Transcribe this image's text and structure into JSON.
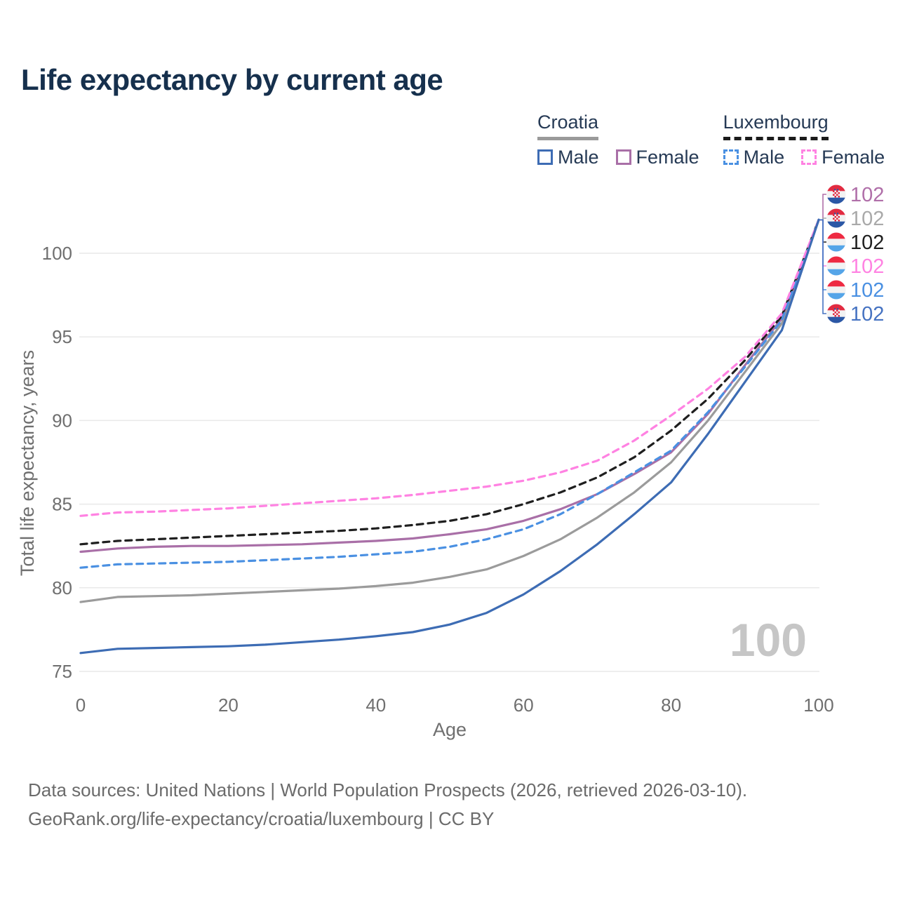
{
  "header": {
    "title": "Life expectancy by current age"
  },
  "legend": {
    "groups": [
      {
        "id": "croatia",
        "name": "Croatia",
        "line_style": "solid",
        "underline_color": "#9a9a9a",
        "items": [
          {
            "label": "Male",
            "color": "#3d6cb4",
            "dashed": false
          },
          {
            "label": "Female",
            "color": "#a96fa7",
            "dashed": false
          }
        ]
      },
      {
        "id": "luxembourg",
        "name": "Luxembourg",
        "line_style": "dashed",
        "underline_color": "#1b1b1b",
        "items": [
          {
            "label": "Male",
            "color": "#4a90e2",
            "dashed": true
          },
          {
            "label": "Female",
            "color": "#ff82e2",
            "dashed": true
          }
        ]
      }
    ]
  },
  "chart_data": {
    "type": "line",
    "title": "Life expectancy by current age",
    "xlabel": "Age",
    "ylabel": "Total life expectancy, years",
    "xlim": [
      0,
      100
    ],
    "ylim": [
      75,
      102.5
    ],
    "xticks": [
      0,
      20,
      40,
      60,
      80,
      100
    ],
    "yticks": [
      75,
      80,
      85,
      90,
      95,
      100
    ],
    "grid": "horizontal",
    "legend_position": "top-right",
    "x": [
      0,
      5,
      10,
      15,
      20,
      25,
      30,
      35,
      40,
      45,
      50,
      55,
      60,
      65,
      70,
      75,
      80,
      85,
      90,
      95,
      100
    ],
    "series": [
      {
        "id": "croatia-all",
        "name": "Croatia",
        "color": "#9b9b9b",
        "dashed": false,
        "values": [
          79.15,
          79.45,
          79.5,
          79.55,
          79.65,
          79.75,
          79.85,
          79.95,
          80.1,
          80.3,
          80.65,
          81.1,
          81.9,
          82.9,
          84.2,
          85.7,
          87.5,
          90.0,
          92.9,
          95.8,
          102
        ]
      },
      {
        "id": "croatia-female",
        "name": "Croatia Female",
        "color": "#a96fa7",
        "dashed": false,
        "values": [
          82.15,
          82.35,
          82.45,
          82.5,
          82.5,
          82.55,
          82.6,
          82.7,
          82.8,
          82.95,
          83.2,
          83.5,
          84.0,
          84.7,
          85.6,
          86.8,
          88.1,
          90.4,
          93.3,
          96.1,
          102
        ]
      },
      {
        "id": "luxembourg-all",
        "name": "Luxembourg",
        "color": "#1f1f1f",
        "dashed": true,
        "values": [
          82.6,
          82.8,
          82.9,
          83.0,
          83.1,
          83.2,
          83.3,
          83.4,
          83.55,
          83.75,
          84.0,
          84.4,
          85.0,
          85.7,
          86.6,
          87.8,
          89.4,
          91.3,
          93.6,
          96.25,
          102
        ]
      },
      {
        "id": "luxembourg-male",
        "name": "Luxembourg Male",
        "color": "#4a90e2",
        "dashed": true,
        "values": [
          81.2,
          81.4,
          81.45,
          81.5,
          81.55,
          81.65,
          81.75,
          81.85,
          82.0,
          82.15,
          82.45,
          82.9,
          83.5,
          84.4,
          85.6,
          86.9,
          88.2,
          90.5,
          93.2,
          96.0,
          102
        ]
      },
      {
        "id": "luxembourg-female",
        "name": "Luxembourg Female",
        "color": "#ff82e2",
        "dashed": true,
        "values": [
          84.3,
          84.5,
          84.55,
          84.65,
          84.75,
          84.9,
          85.05,
          85.2,
          85.35,
          85.55,
          85.8,
          86.05,
          86.4,
          86.9,
          87.6,
          88.8,
          90.3,
          91.9,
          93.8,
          96.4,
          102
        ]
      },
      {
        "id": "croatia-male",
        "name": "Croatia Male",
        "color": "#3d6cb4",
        "dashed": false,
        "values": [
          76.1,
          76.35,
          76.4,
          76.45,
          76.5,
          76.6,
          76.75,
          76.9,
          77.1,
          77.35,
          77.8,
          78.5,
          79.6,
          81.0,
          82.6,
          84.4,
          86.3,
          89.2,
          92.3,
          95.4,
          102
        ]
      }
    ],
    "end_labels": [
      {
        "flag": "croatia",
        "series": "croatia-female",
        "value": "102",
        "color": "#b06fa9"
      },
      {
        "flag": "croatia",
        "series": "croatia-all",
        "value": "102",
        "color": "#a9a9a9"
      },
      {
        "flag": "luxembourg",
        "series": "luxembourg-all",
        "value": "102",
        "color": "#1f1f1f"
      },
      {
        "flag": "luxembourg",
        "series": "luxembourg-female",
        "value": "102",
        "color": "#ff82e2"
      },
      {
        "flag": "luxembourg",
        "series": "luxembourg-male",
        "value": "102",
        "color": "#4a90e2"
      },
      {
        "flag": "croatia",
        "series": "croatia-male",
        "value": "102",
        "color": "#4673c2"
      }
    ],
    "watermark": "100"
  },
  "footer": {
    "line1": "Data sources: United Nations | World Population Prospects (2026, retrieved 2026-03-10).",
    "line2": "GeoRank.org/life-expectancy/croatia/luxembourg | CC BY"
  }
}
